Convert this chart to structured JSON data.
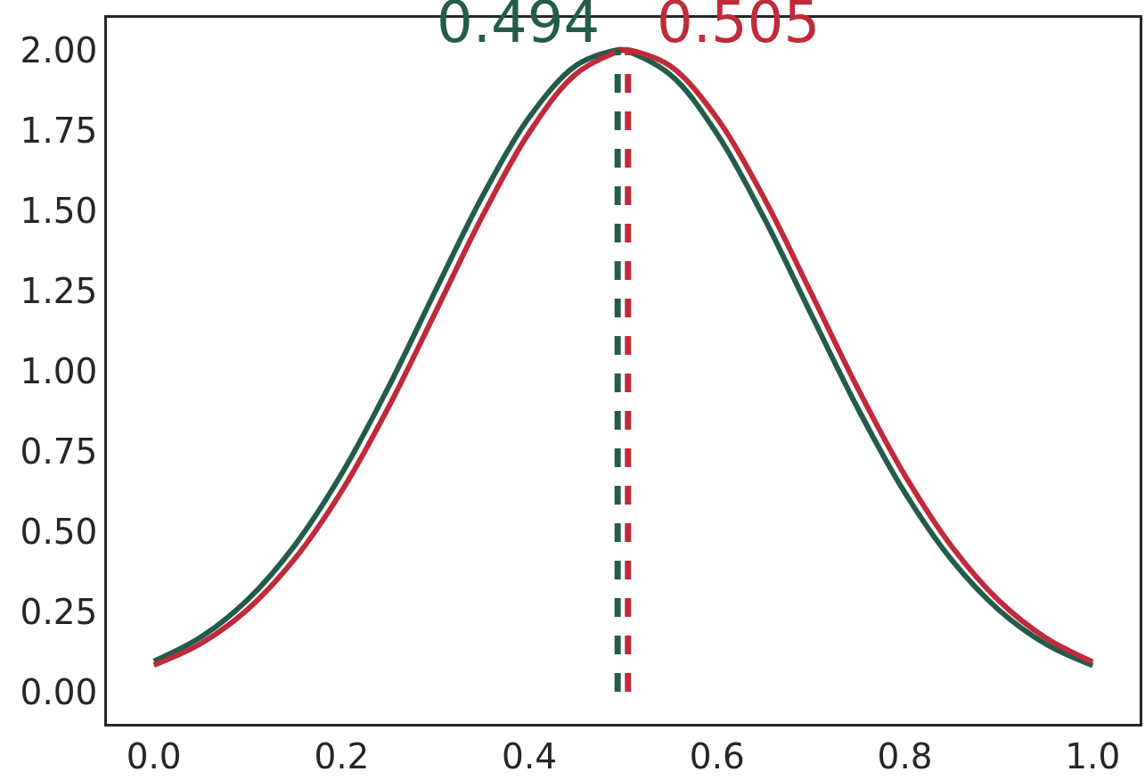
{
  "chart_data": {
    "type": "line",
    "series": [
      {
        "color": "#235c4b",
        "x": [
          0,
          0.05,
          0.1,
          0.15,
          0.2,
          0.25,
          0.3,
          0.35,
          0.4,
          0.45,
          0.494,
          0.5,
          0.55,
          0.6,
          0.65,
          0.7,
          0.75,
          0.8,
          0.85,
          0.9,
          0.95,
          1.0
        ],
        "values": [
          0.095,
          0.17,
          0.287,
          0.456,
          0.679,
          0.95,
          1.25,
          1.544,
          1.791,
          1.952,
          2.0,
          2.0,
          1.923,
          1.738,
          1.476,
          1.177,
          0.882,
          0.62,
          0.41,
          0.255,
          0.149,
          0.082
        ]
      },
      {
        "color": "#c02a3a",
        "x": [
          0,
          0.05,
          0.1,
          0.15,
          0.2,
          0.25,
          0.3,
          0.35,
          0.4,
          0.45,
          0.5,
          0.505,
          0.55,
          0.6,
          0.65,
          0.7,
          0.75,
          0.8,
          0.85,
          0.9,
          0.95,
          1.0
        ],
        "values": [
          0.083,
          0.15,
          0.257,
          0.414,
          0.625,
          0.887,
          1.183,
          1.482,
          1.743,
          1.926,
          2.0,
          2.0,
          1.95,
          1.787,
          1.538,
          1.243,
          0.944,
          0.674,
          0.452,
          0.284,
          0.168,
          0.093
        ]
      }
    ],
    "ref_lines": [
      {
        "axis": "x",
        "value": 0.494,
        "label": "0.494",
        "color": "#235c4b",
        "line_style": "dashed"
      },
      {
        "axis": "x",
        "value": 0.505,
        "label": "0.505",
        "color": "#c02a3a",
        "line_style": "dashed"
      }
    ],
    "xlim": [
      -0.05,
      1.05
    ],
    "xticks": [
      {
        "value": 0,
        "label": "0.0"
      },
      {
        "value": 0.2,
        "label": "0.2"
      },
      {
        "value": 0.4,
        "label": "0.4"
      },
      {
        "value": 0.6,
        "label": "0.6"
      },
      {
        "value": 0.8,
        "label": "0.8"
      },
      {
        "value": 1.0,
        "label": "1.0"
      }
    ],
    "ylim": [
      -0.1,
      2.1
    ],
    "yticks": [
      {
        "value": 0,
        "label": "0.00"
      },
      0.25,
      {
        "value": 0.5,
        "label": "0.50"
      },
      0.75,
      {
        "value": 1.0,
        "label": "1.00"
      },
      1.25,
      {
        "value": 1.5,
        "label": "1.50"
      },
      1.75,
      {
        "value": 2.0,
        "label": "2.00"
      }
    ],
    "marker": "none",
    "line_style": "solid"
  }
}
